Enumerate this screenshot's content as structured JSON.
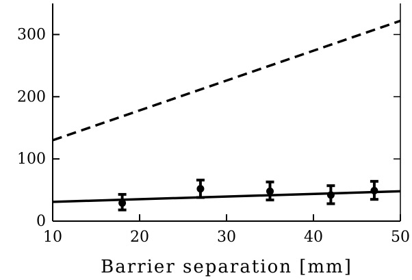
{
  "chart_data": {
    "type": "scatter",
    "xlabel": "Barrier separation [mm]",
    "ylabel": "",
    "xlim": [
      10,
      50
    ],
    "ylim": [
      0,
      350
    ],
    "x_ticks": [
      10,
      20,
      30,
      40,
      50
    ],
    "y_ticks": [
      0,
      100,
      200,
      300
    ],
    "grid": false,
    "legend": "none",
    "series": [
      {
        "kind": "line",
        "style": "dashed",
        "color": "#000000",
        "x": [
          10,
          50
        ],
        "y": [
          130,
          322
        ]
      },
      {
        "kind": "line",
        "style": "solid",
        "color": "#000000",
        "x": [
          10,
          50
        ],
        "y": [
          31,
          48
        ]
      },
      {
        "kind": "points",
        "marker": "circle",
        "color": "#000000",
        "x": [
          18,
          27,
          35,
          42,
          47
        ],
        "y": [
          29,
          52,
          48,
          42,
          49
        ],
        "err_low": [
          11,
          14,
          14,
          14,
          14
        ],
        "err_high": [
          14,
          14,
          15,
          15,
          15
        ]
      }
    ]
  }
}
